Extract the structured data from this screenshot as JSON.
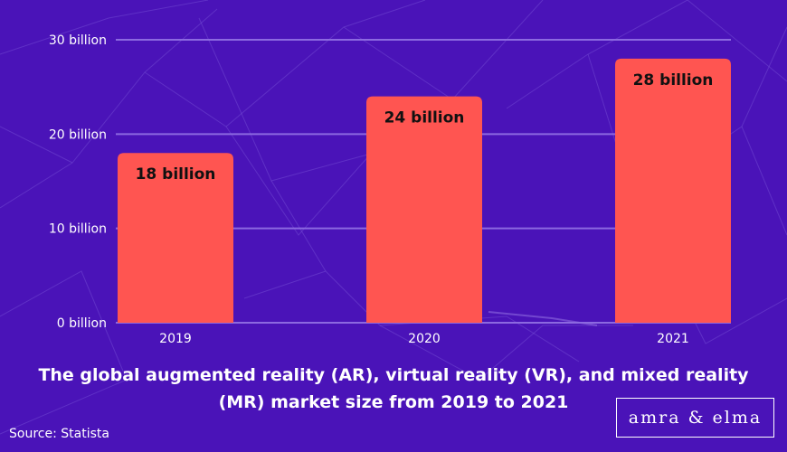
{
  "chart_data": {
    "type": "bar",
    "categories": [
      "2019",
      "2020",
      "2021"
    ],
    "values": [
      18,
      24,
      28
    ],
    "data_labels": [
      "18 billion",
      "24 billion",
      "28 billion"
    ],
    "ytick_labels": [
      "0 billion",
      "10 billion",
      "20 billion",
      "30 billion"
    ],
    "yticks": [
      0,
      10,
      20,
      30
    ],
    "ylim": [
      0,
      30
    ],
    "grid": true,
    "bar_color": "#ff5551",
    "background_color": "#4a13b8",
    "gridline_color": "#8c69e0"
  },
  "caption": "The global augmented reality (AR), virtual reality (VR), and mixed reality (MR) market size from 2019 to 2021",
  "source": "Source: Statista",
  "logo": "amra & elma"
}
